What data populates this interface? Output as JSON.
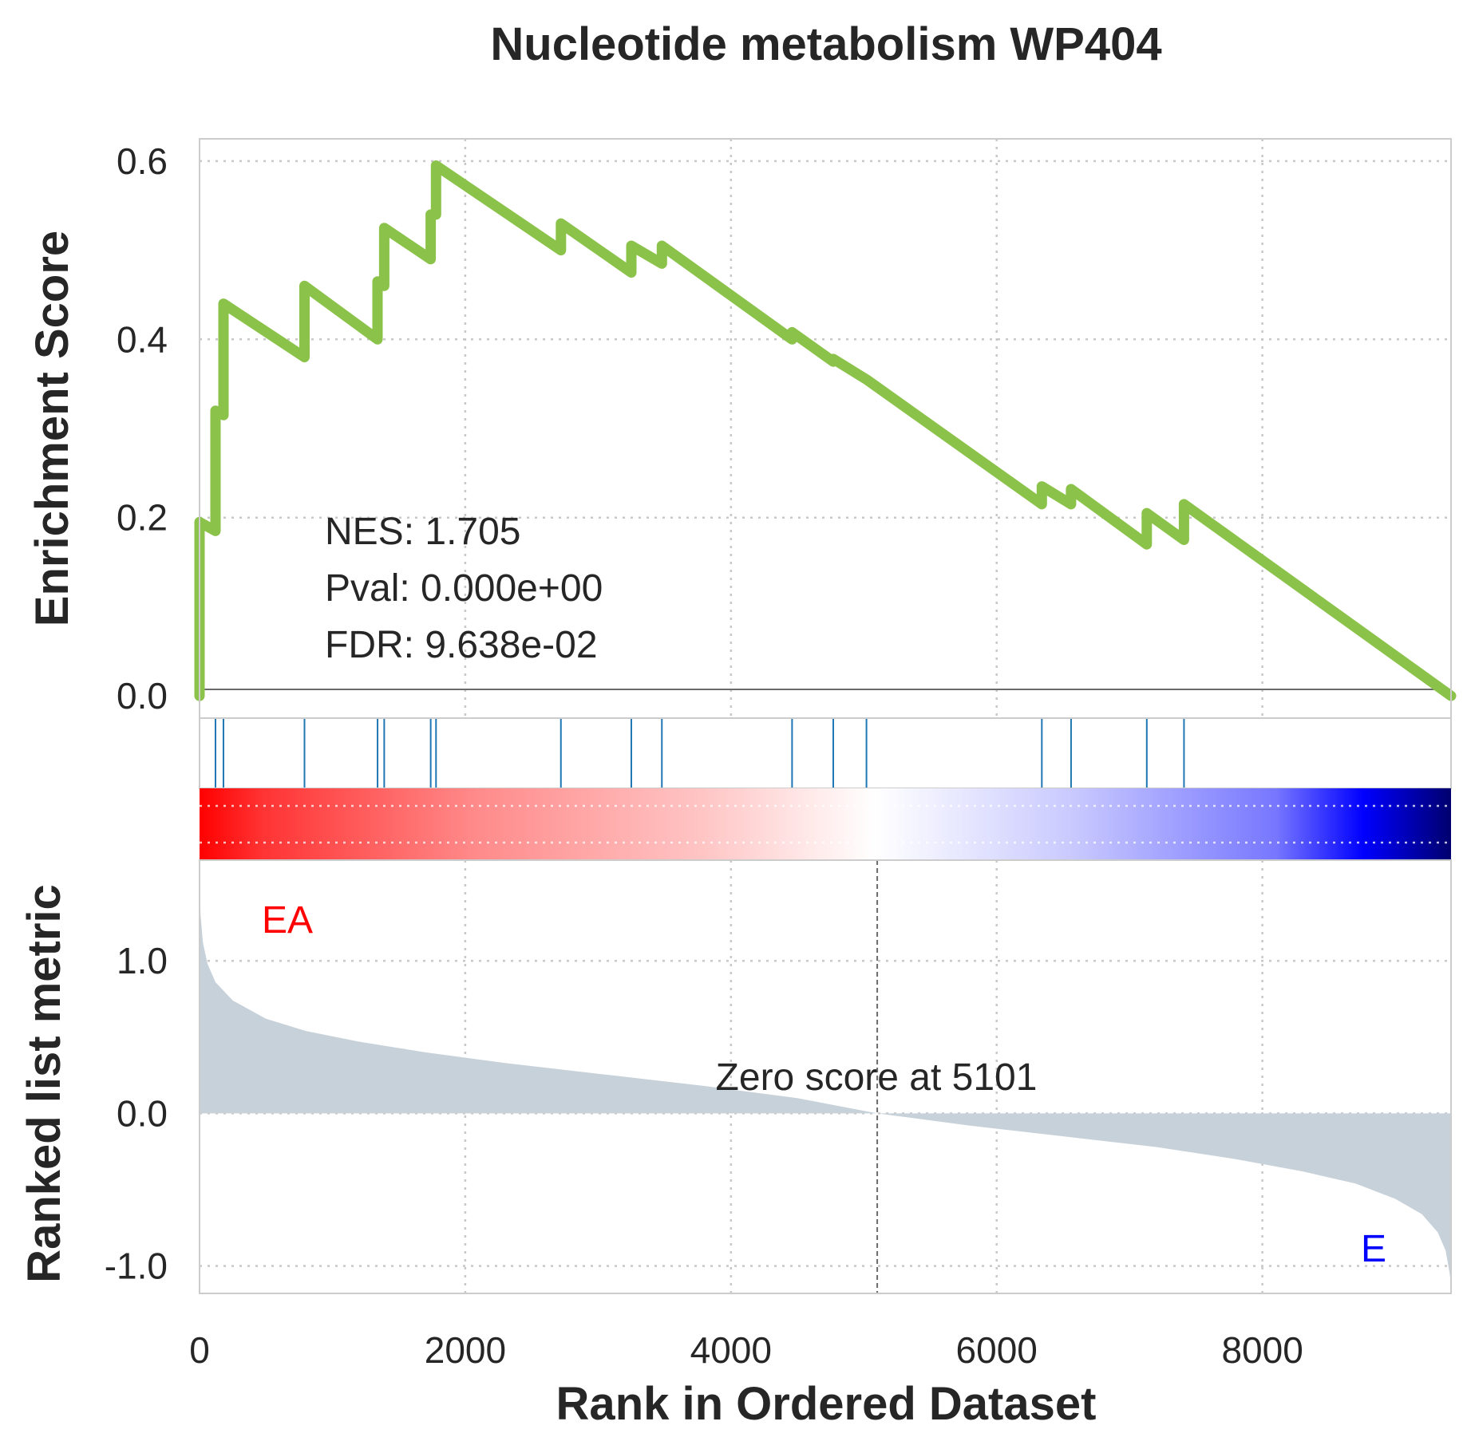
{
  "chart_data": {
    "type": "line",
    "title": "Nucleotide metabolism WP404",
    "xlabel": "Rank in Ordered Dataset",
    "xlim": [
      0,
      9420
    ],
    "x_ticks": [
      "0",
      "2000",
      "4000",
      "6000",
      "8000"
    ],
    "x_tick_values": [
      0,
      2000,
      4000,
      6000,
      8000
    ],
    "grid": true,
    "colors": {
      "curve": "#8bc34a",
      "hits": "#1f77b4",
      "metric_fill": "#c7d1da",
      "pos_label": "#ff0000",
      "neg_label": "#0000ff"
    },
    "enrichment": {
      "ylabel": "Enrichment Score",
      "ylim": [
        -0.025,
        0.625
      ],
      "y_ticks": [
        "0.0",
        "0.2",
        "0.4",
        "0.6"
      ],
      "y_tick_values": [
        0,
        0.2,
        0.4,
        0.6
      ],
      "series": [
        {
          "x": [
            0,
            0,
            120,
            120,
            180,
            180,
            790,
            790,
            1340,
            1340,
            1390,
            1390,
            1740,
            1740,
            1780,
            1780,
            2720,
            2720,
            3250,
            3250,
            3480,
            3480,
            4460,
            4460,
            4770,
            4770,
            5020,
            6340,
            6340,
            6560,
            6560,
            7130,
            7130,
            7410,
            7410,
            9420
          ],
          "y": [
            0,
            0.195,
            0.185,
            0.32,
            0.315,
            0.44,
            0.38,
            0.46,
            0.4,
            0.465,
            0.46,
            0.525,
            0.49,
            0.54,
            0.54,
            0.595,
            0.5,
            0.53,
            0.475,
            0.505,
            0.485,
            0.505,
            0.4,
            0.408,
            0.375,
            0.378,
            0.355,
            0.215,
            0.235,
            0.215,
            0.232,
            0.17,
            0.205,
            0.175,
            0.215,
            0
          ]
        }
      ],
      "stats": {
        "nes": "NES: 1.705",
        "pval": "Pval: 0.000e+00",
        "fdr": "FDR: 9.638e-02"
      }
    },
    "hits": [
      0,
      120,
      180,
      790,
      1340,
      1390,
      1740,
      1780,
      2720,
      3250,
      3480,
      4460,
      4770,
      5020,
      6340,
      6560,
      7130,
      7410
    ],
    "ranked_metric": {
      "ylabel": "Ranked list metric",
      "ylim": [
        -1.18,
        1.66
      ],
      "y_ticks": [
        "1.0",
        "0.0",
        "-1.0"
      ],
      "y_tick_values": [
        1,
        0,
        -1
      ],
      "series": [
        {
          "x": [
            0,
            8,
            25,
            60,
            120,
            250,
            500,
            800,
            1200,
            1700,
            2300,
            3000,
            3800,
            4500,
            5101,
            5800,
            6500,
            7200,
            7800,
            8300,
            8700,
            9000,
            9200,
            9320,
            9380,
            9410,
            9420
          ],
          "y": [
            1.55,
            1.3,
            1.12,
            0.98,
            0.86,
            0.74,
            0.62,
            0.54,
            0.47,
            0.4,
            0.33,
            0.26,
            0.18,
            0.1,
            0.0,
            -0.08,
            -0.15,
            -0.22,
            -0.3,
            -0.38,
            -0.46,
            -0.56,
            -0.66,
            -0.78,
            -0.9,
            -1.05,
            -1.12
          ]
        }
      ],
      "zero_cross": 5101,
      "zero_label": "Zero score at 5101",
      "pos_label": "EA",
      "neg_label": "E"
    }
  }
}
